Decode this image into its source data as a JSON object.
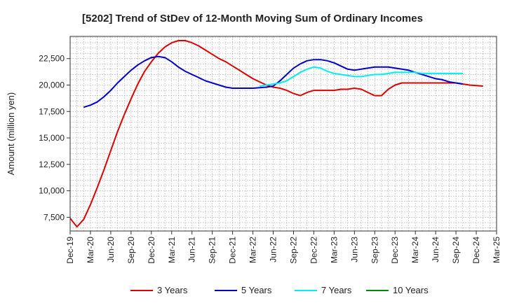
{
  "chart_data": {
    "type": "line",
    "title": "[5202]  Trend of StDev of 12-Month Moving Sum of Ordinary Incomes",
    "xlabel": "",
    "ylabel": "Amount (million yen)",
    "ylim": [
      6200,
      24600
    ],
    "yticks": [
      7500,
      10000,
      12500,
      15000,
      17500,
      20000,
      22500
    ],
    "ytick_labels": [
      "7,500",
      "10,000",
      "12,500",
      "15,000",
      "17,500",
      "20,000",
      "22,500"
    ],
    "x_start": "Dec-19",
    "x_end": "Mar-25",
    "xtick_labels": [
      "Dec-19",
      "Mar-20",
      "Jun-20",
      "Sep-20",
      "Dec-20",
      "Mar-21",
      "Jun-21",
      "Sep-21",
      "Dec-21",
      "Mar-22",
      "Jun-22",
      "Sep-22",
      "Dec-22",
      "Mar-23",
      "Jun-23",
      "Sep-23",
      "Dec-23",
      "Mar-24",
      "Jun-24",
      "Sep-24",
      "Dec-24",
      "Mar-25"
    ],
    "grid": true,
    "legend_position": "bottom",
    "series": [
      {
        "name": "3 Years",
        "color": "#dd0000",
        "points": [
          [
            0,
            7400
          ],
          [
            1,
            6600
          ],
          [
            2,
            7300
          ],
          [
            3,
            8700
          ],
          [
            4,
            10300
          ],
          [
            5,
            12000
          ],
          [
            6,
            13800
          ],
          [
            7,
            15600
          ],
          [
            8,
            17200
          ],
          [
            9,
            18700
          ],
          [
            10,
            20100
          ],
          [
            11,
            21300
          ],
          [
            12,
            22200
          ],
          [
            13,
            23000
          ],
          [
            14,
            23600
          ],
          [
            15,
            24000
          ],
          [
            16,
            24200
          ],
          [
            17,
            24200
          ],
          [
            18,
            24000
          ],
          [
            19,
            23700
          ],
          [
            20,
            23300
          ],
          [
            21,
            22900
          ],
          [
            22,
            22500
          ],
          [
            23,
            22200
          ],
          [
            24,
            21800
          ],
          [
            25,
            21400
          ],
          [
            26,
            21000
          ],
          [
            27,
            20600
          ],
          [
            28,
            20300
          ],
          [
            29,
            20000
          ],
          [
            30,
            19800
          ],
          [
            31,
            19700
          ],
          [
            32,
            19500
          ],
          [
            33,
            19200
          ],
          [
            34,
            19000
          ],
          [
            35,
            19300
          ],
          [
            36,
            19500
          ],
          [
            37,
            19500
          ],
          [
            38,
            19500
          ],
          [
            39,
            19500
          ],
          [
            40,
            19600
          ],
          [
            41,
            19600
          ],
          [
            42,
            19700
          ],
          [
            43,
            19600
          ],
          [
            44,
            19300
          ],
          [
            45,
            19000
          ],
          [
            46,
            19000
          ],
          [
            47,
            19600
          ],
          [
            48,
            20000
          ],
          [
            49,
            20200
          ],
          [
            50,
            20200
          ],
          [
            51,
            20200
          ],
          [
            52,
            20200
          ],
          [
            53,
            20200
          ],
          [
            54,
            20200
          ],
          [
            55,
            20200
          ],
          [
            56,
            20200
          ],
          [
            57,
            20200
          ],
          [
            58,
            20100
          ],
          [
            59,
            20000
          ],
          [
            60,
            19950
          ],
          [
            61,
            19900
          ]
        ]
      },
      {
        "name": "5 Years",
        "color": "#0000cc",
        "points": [
          [
            2,
            17900
          ],
          [
            3,
            18100
          ],
          [
            4,
            18400
          ],
          [
            5,
            18900
          ],
          [
            6,
            19500
          ],
          [
            7,
            20200
          ],
          [
            8,
            20800
          ],
          [
            9,
            21400
          ],
          [
            10,
            21900
          ],
          [
            11,
            22300
          ],
          [
            12,
            22600
          ],
          [
            13,
            22700
          ],
          [
            14,
            22600
          ],
          [
            15,
            22200
          ],
          [
            16,
            21700
          ],
          [
            17,
            21300
          ],
          [
            18,
            21000
          ],
          [
            19,
            20700
          ],
          [
            20,
            20400
          ],
          [
            21,
            20200
          ],
          [
            22,
            20000
          ],
          [
            23,
            19800
          ],
          [
            24,
            19700
          ],
          [
            25,
            19700
          ],
          [
            26,
            19700
          ],
          [
            27,
            19700
          ],
          [
            28,
            19750
          ],
          [
            29,
            19800
          ],
          [
            30,
            19900
          ],
          [
            31,
            20400
          ],
          [
            32,
            21000
          ],
          [
            33,
            21600
          ],
          [
            34,
            22000
          ],
          [
            35,
            22300
          ],
          [
            36,
            22400
          ],
          [
            37,
            22400
          ],
          [
            38,
            22300
          ],
          [
            39,
            22100
          ],
          [
            40,
            21800
          ],
          [
            41,
            21500
          ],
          [
            42,
            21400
          ],
          [
            43,
            21500
          ],
          [
            44,
            21600
          ],
          [
            45,
            21700
          ],
          [
            46,
            21700
          ],
          [
            47,
            21700
          ],
          [
            48,
            21600
          ],
          [
            49,
            21500
          ],
          [
            50,
            21400
          ],
          [
            51,
            21200
          ],
          [
            52,
            21000
          ],
          [
            53,
            20800
          ],
          [
            54,
            20600
          ],
          [
            55,
            20500
          ],
          [
            56,
            20300
          ],
          [
            57,
            20200
          ],
          [
            58,
            20100
          ]
        ]
      },
      {
        "name": "7 Years",
        "color": "#00eeee",
        "points": [
          [
            28,
            19900
          ],
          [
            29,
            20000
          ],
          [
            30,
            20100
          ],
          [
            31,
            20200
          ],
          [
            32,
            20400
          ],
          [
            33,
            20800
          ],
          [
            34,
            21200
          ],
          [
            35,
            21500
          ],
          [
            36,
            21700
          ],
          [
            37,
            21600
          ],
          [
            38,
            21300
          ],
          [
            39,
            21100
          ],
          [
            40,
            21000
          ],
          [
            41,
            20900
          ],
          [
            42,
            20800
          ],
          [
            43,
            20800
          ],
          [
            44,
            20900
          ],
          [
            45,
            21000
          ],
          [
            46,
            21000
          ],
          [
            47,
            21100
          ],
          [
            48,
            21200
          ],
          [
            49,
            21200
          ],
          [
            50,
            21200
          ],
          [
            51,
            21200
          ],
          [
            52,
            21100
          ],
          [
            53,
            21100
          ],
          [
            54,
            21100
          ],
          [
            55,
            21100
          ],
          [
            56,
            21100
          ],
          [
            57,
            21100
          ],
          [
            58,
            21100
          ]
        ]
      },
      {
        "name": "10 Years",
        "color": "#008800",
        "points": []
      }
    ]
  }
}
